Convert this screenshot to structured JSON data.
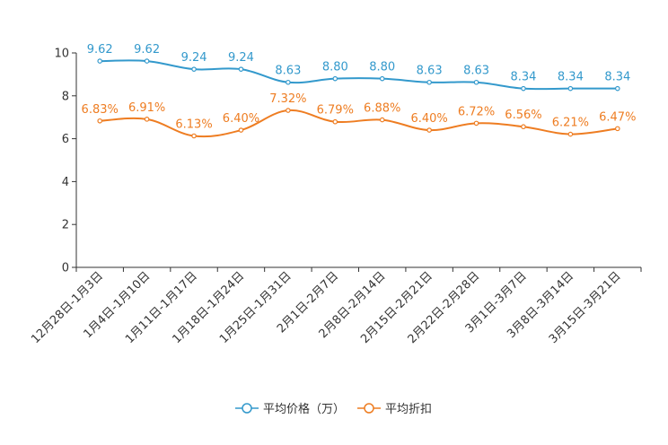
{
  "chart_data": {
    "type": "line",
    "title": "",
    "xlabel": "",
    "ylabel": "",
    "ylim": [
      0,
      10
    ],
    "yticks": [
      "0",
      "2",
      "4",
      "6",
      "8",
      "10"
    ],
    "grid": false,
    "legend_position": "bottom-center",
    "categories": [
      "12月28日-1月3日",
      "1月4日-1月10日",
      "1月11日-1月17日",
      "1月18日-1月24日",
      "1月25日-1月31日",
      "2月1日-2月7日",
      "2月8日-2月14日",
      "2月15日-2月21日",
      "2月22日-2月28日",
      "3月1日-3月7日",
      "3月8日-3月14日",
      "3月15日-3月21日"
    ],
    "series": [
      {
        "name": "平均价格（万）",
        "color": "#3399cc",
        "values": [
          9.62,
          9.62,
          9.24,
          9.24,
          8.63,
          8.8,
          8.8,
          8.63,
          8.63,
          8.34,
          8.34,
          8.34
        ],
        "labels": [
          "9.62",
          "9.62",
          "9.24",
          "9.24",
          "8.63",
          "8.80",
          "8.80",
          "8.63",
          "8.63",
          "8.34",
          "8.34",
          "8.34"
        ]
      },
      {
        "name": "平均折扣",
        "color": "#ee7d22",
        "values": [
          6.83,
          6.91,
          6.13,
          6.4,
          7.32,
          6.79,
          6.88,
          6.4,
          6.72,
          6.56,
          6.21,
          6.47
        ],
        "labels": [
          "6.83%",
          "6.91%",
          "6.13%",
          "6.40%",
          "7.32%",
          "6.79%",
          "6.88%",
          "6.40%",
          "6.72%",
          "6.56%",
          "6.21%",
          "6.47%"
        ]
      }
    ]
  }
}
